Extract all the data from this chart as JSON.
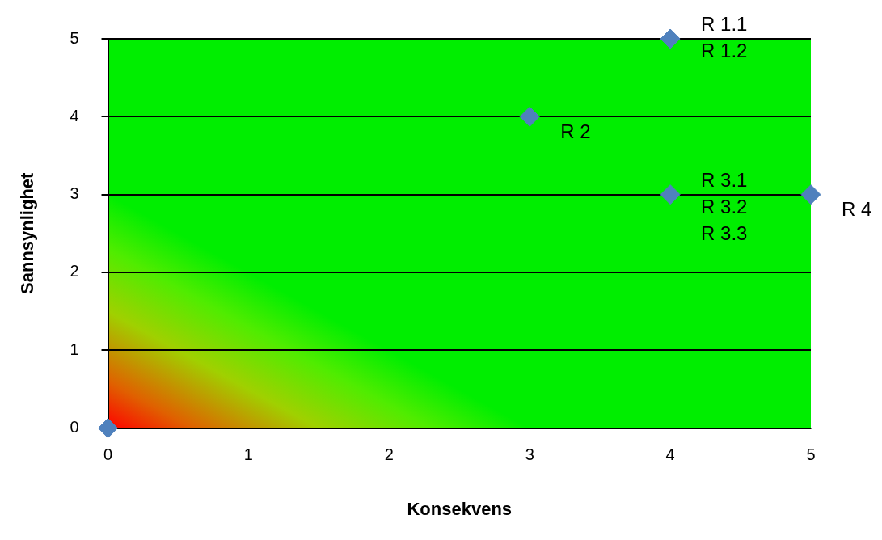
{
  "chart_data": {
    "type": "scatter",
    "xlabel": "Konsekvens",
    "ylabel": "Sannsynlighet",
    "x": [
      0,
      3,
      4,
      4,
      5
    ],
    "values": [
      0,
      4,
      5,
      3,
      3
    ],
    "color": "#4f81bd",
    "marker": "diamond",
    "xlim": [
      0,
      5
    ],
    "ylim": [
      0,
      5
    ],
    "xticks": [
      0,
      1,
      2,
      3,
      4,
      5
    ],
    "yticks": [
      0,
      1,
      2,
      3,
      4,
      5
    ],
    "grid": "y",
    "annotations": [
      {
        "text": "R 1.1",
        "x": 4,
        "y": 5
      },
      {
        "text": "R 1.2",
        "x": 4,
        "y": 5
      },
      {
        "text": "R 2",
        "x": 3,
        "y": 4
      },
      {
        "text": "R 3.1",
        "x": 4,
        "y": 3
      },
      {
        "text": "R 3.2",
        "x": 4,
        "y": 3
      },
      {
        "text": "R 3.3",
        "x": 4,
        "y": 3
      },
      {
        "text": "R 4",
        "x": 5,
        "y": 3
      }
    ]
  }
}
